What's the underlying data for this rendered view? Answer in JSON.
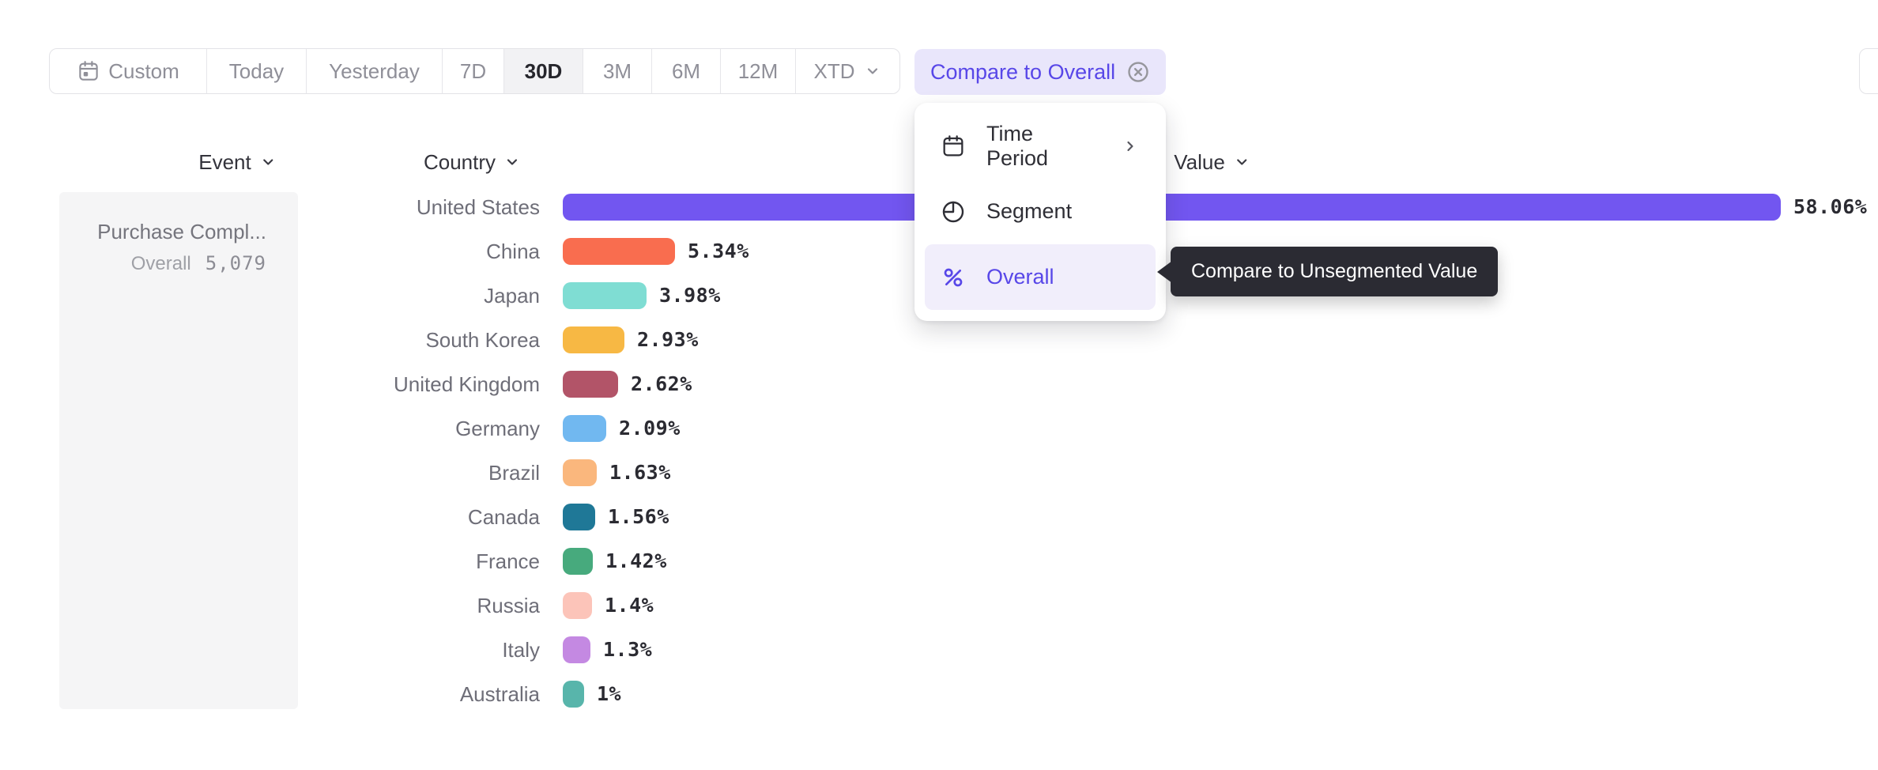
{
  "toolbar": {
    "items": [
      {
        "label": "Custom",
        "icon": "calendar-dot"
      },
      {
        "label": "Today"
      },
      {
        "label": "Yesterday"
      },
      {
        "label": "7D"
      },
      {
        "label": "30D",
        "active": true
      },
      {
        "label": "3M"
      },
      {
        "label": "6M"
      },
      {
        "label": "12M"
      },
      {
        "label": "XTD",
        "has_dropdown": true
      }
    ]
  },
  "compare_pill": {
    "label": "Compare to Overall"
  },
  "columns": {
    "event": "Event",
    "country": "Country",
    "value": "Value"
  },
  "event_card": {
    "title": "Purchase Compl...",
    "overall_label": "Overall",
    "overall_value": "5,079"
  },
  "menu": {
    "items": [
      {
        "label": "Time Period",
        "icon": "calendar",
        "has_submenu": true
      },
      {
        "label": "Segment",
        "icon": "segment"
      },
      {
        "label": "Overall",
        "icon": "percent",
        "active": true
      }
    ]
  },
  "tooltip": {
    "text": "Compare to Unsegmented Value"
  },
  "chart_data": {
    "type": "bar",
    "orientation": "horizontal",
    "categories": [
      "United States",
      "China",
      "Japan",
      "South Korea",
      "United Kingdom",
      "Germany",
      "Brazil",
      "Canada",
      "France",
      "Russia",
      "Italy",
      "Australia"
    ],
    "values": [
      58.06,
      5.34,
      3.98,
      2.93,
      2.62,
      2.09,
      1.63,
      1.56,
      1.42,
      1.4,
      1.3,
      1
    ],
    "value_labels": [
      "58.06%",
      "5.34%",
      "3.98%",
      "2.93%",
      "2.62%",
      "2.09%",
      "1.63%",
      "1.56%",
      "1.42%",
      "1.4%",
      "1.3%",
      "1%"
    ],
    "colors": [
      "#7256f0",
      "#f96d4f",
      "#7fddd3",
      "#f7b844",
      "#b25468",
      "#71b8f0",
      "#fab77d",
      "#1f7897",
      "#47aa7d",
      "#fcc4b9",
      "#c489e2",
      "#58b5ab"
    ],
    "series_name": "Purchase Compl...",
    "overall_total": "5,079",
    "xlim": [
      0,
      60
    ],
    "grid": false,
    "legend": false
  },
  "theme": {
    "accent": "#5847e8",
    "accent_bg": "#e9e6fb",
    "accent_soft": "#f1eefb",
    "tooltip_bg": "#2b2b33",
    "active_segment_bg": "#f2f2f4",
    "muted_text": "#8f8f98"
  }
}
